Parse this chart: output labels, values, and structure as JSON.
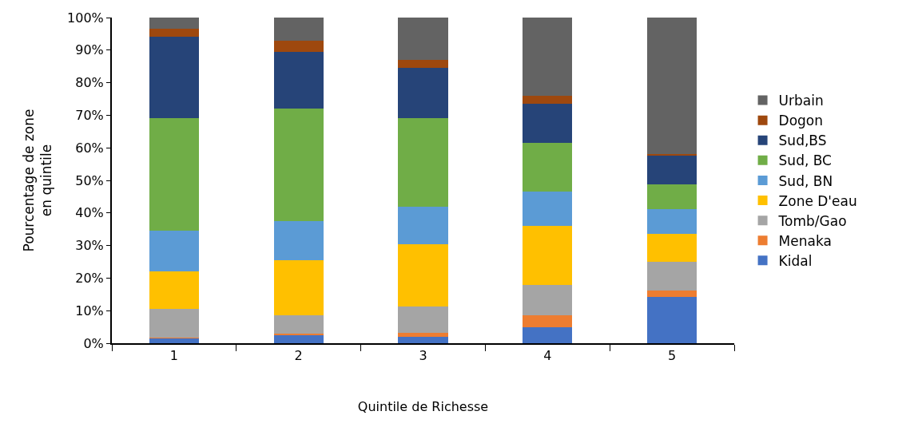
{
  "chart_data": {
    "type": "bar",
    "stacked": true,
    "xlabel": "Quintile de Richesse",
    "ylabel": "Pourcentage de zone\nen quintile",
    "categories": [
      "1",
      "2",
      "3",
      "4",
      "5"
    ],
    "ylim": [
      0,
      100
    ],
    "yticks": [
      {
        "value": 0,
        "label": "0%"
      },
      {
        "value": 10,
        "label": "10%"
      },
      {
        "value": 20,
        "label": "20%"
      },
      {
        "value": 30,
        "label": "30%"
      },
      {
        "value": 40,
        "label": "40%"
      },
      {
        "value": 50,
        "label": "50%"
      },
      {
        "value": 60,
        "label": "60%"
      },
      {
        "value": 70,
        "label": "70%"
      },
      {
        "value": 80,
        "label": "80%"
      },
      {
        "value": 90,
        "label": "90%"
      },
      {
        "value": 100,
        "label": "100%"
      }
    ],
    "grid": false,
    "legend": "right",
    "series": [
      {
        "name": "Kidal",
        "color": "#4472c4",
        "values": [
          1.5,
          2.5,
          2,
          5,
          14.3
        ]
      },
      {
        "name": "Menaka",
        "color": "#ed7d31",
        "values": [
          0.1,
          0.5,
          1.2,
          3.5,
          1.9
        ]
      },
      {
        "name": "Tomb/Gao",
        "color": "#a5a5a5",
        "values": [
          8.9,
          5.7,
          8,
          9.5,
          8.8
        ]
      },
      {
        "name": "Zone D'eau",
        "color": "#ffc000",
        "values": [
          11.5,
          16.8,
          19.3,
          18,
          8.7
        ]
      },
      {
        "name": "Sud, BN",
        "color": "#5b9bd5",
        "values": [
          12.5,
          12,
          11.5,
          10.5,
          7.5
        ]
      },
      {
        "name": "Sud, BC",
        "color": "#70ad47",
        "values": [
          34.5,
          34.5,
          27,
          15,
          7.6
        ]
      },
      {
        "name": "Sud,BS",
        "color": "#264478",
        "values": [
          25,
          17.5,
          15.5,
          12,
          8.7
        ]
      },
      {
        "name": "Dogon",
        "color": "#9e480e",
        "values": [
          2.5,
          3.5,
          2.5,
          2.5,
          0.7
        ]
      },
      {
        "name": "Urbain",
        "color": "#636363",
        "values": [
          3.5,
          7,
          13,
          24,
          41.8
        ]
      }
    ]
  }
}
